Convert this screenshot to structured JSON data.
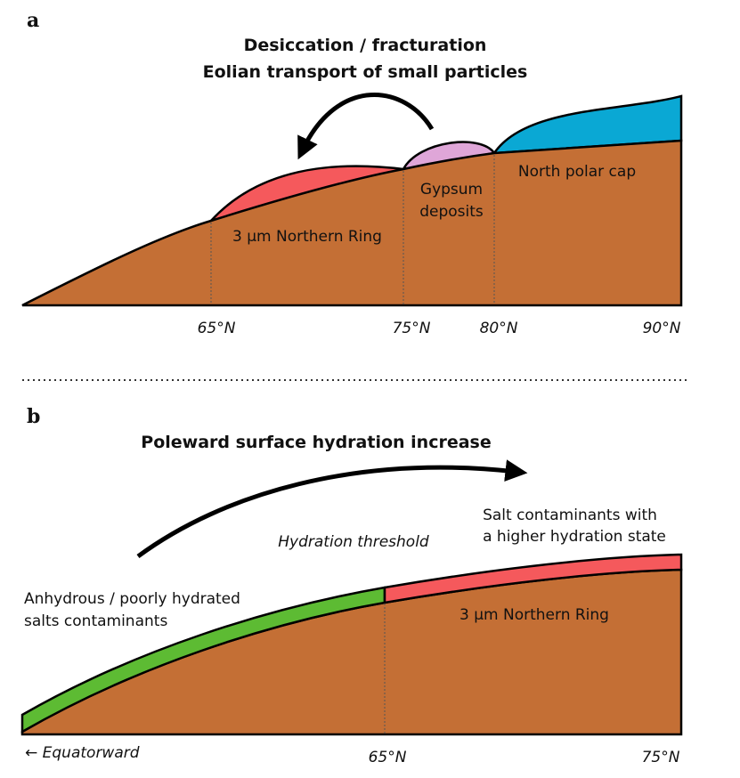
{
  "panel_a": {
    "label": "a",
    "title_lines": [
      "Desiccation / fracturation",
      "Eolian transport of small particles"
    ],
    "ring_label": "3 µm Northern Ring",
    "gypsum_lines": [
      "Gypsum",
      "deposits"
    ],
    "cap_label": "North polar cap",
    "latitudes": [
      "65°N",
      "75°N",
      "80°N",
      "90°N"
    ]
  },
  "panel_b": {
    "label": "b",
    "title": "Poleward surface hydration increase",
    "threshold_label": "Hydration threshold",
    "salt_lines": [
      "Salt contaminants with",
      "a higher hydration state"
    ],
    "anhydrous_lines": [
      "Anhydrous / poorly hydrated",
      "salts contaminants"
    ],
    "ring_label": "3 µm Northern Ring",
    "equatorward": "← Equatorward",
    "latitudes": [
      "65°N",
      "75°N"
    ]
  }
}
